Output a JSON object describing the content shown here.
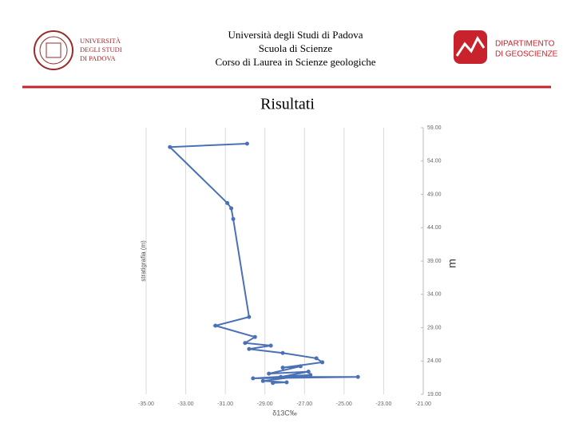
{
  "header": {
    "university_logo": [
      "UNIVERSITÀ",
      "DEGLI STUDI",
      "DI PADOVA"
    ],
    "lines": [
      "Università degli Studi di Padova",
      "Scuola di Scienze",
      "Corso di Laurea in Scienze geologiche"
    ],
    "department_logo": [
      "DIPARTIMENTO",
      "DI GEOSCIENZE"
    ]
  },
  "slide_title": "Risultati",
  "chart_data": {
    "type": "line",
    "x_label": "δ13C‰",
    "y_label": "stratigrafia (m)",
    "y2_label": "m",
    "xlim": [
      -35,
      -21
    ],
    "xticks": [
      {
        "value": -35,
        "label": "-35.00"
      },
      {
        "value": -33,
        "label": "-33.00"
      },
      {
        "value": -31,
        "label": "-31.00"
      },
      {
        "value": -29,
        "label": "-29.00"
      },
      {
        "value": -27,
        "label": "-27.00"
      },
      {
        "value": -25,
        "label": "-25.00"
      },
      {
        "value": -23,
        "label": "-23.00"
      },
      {
        "value": -21,
        "label": "-21.00"
      }
    ],
    "ylim": [
      19,
      59
    ],
    "yticks": [
      {
        "value": 19,
        "label": "19.00"
      },
      {
        "value": 24,
        "label": "24.00"
      },
      {
        "value": 29,
        "label": "29.00"
      },
      {
        "value": 34,
        "label": "34.00"
      },
      {
        "value": 39,
        "label": "39.00"
      },
      {
        "value": 44,
        "label": "44.00"
      },
      {
        "value": 49,
        "label": "49.00"
      },
      {
        "value": 54,
        "label": "54.00"
      },
      {
        "value": 59,
        "label": "59.00"
      }
    ],
    "grid": true,
    "series": [
      {
        "color": "#4a70b5",
        "x": [
          -29.9,
          -33.8,
          -30.9,
          -30.7,
          -30.6,
          -29.8,
          -31.5,
          -29.5,
          -30.0,
          -28.7,
          -29.8,
          -28.1,
          -26.4,
          -26.1,
          -28.1,
          -27.2,
          -28.8,
          -26.8,
          -28.2,
          -24.3,
          -29.6,
          -26.7,
          -29.1,
          -27.9,
          -28.6
        ],
        "values": [
          56.6,
          56.1,
          47.7,
          46.9,
          45.3,
          30.6,
          29.3,
          27.6,
          26.7,
          26.3,
          25.8,
          25.2,
          24.4,
          23.8,
          23.0,
          23.2,
          22.1,
          22.4,
          21.6,
          21.6,
          21.4,
          21.9,
          21.0,
          20.8,
          20.7
        ]
      }
    ]
  }
}
